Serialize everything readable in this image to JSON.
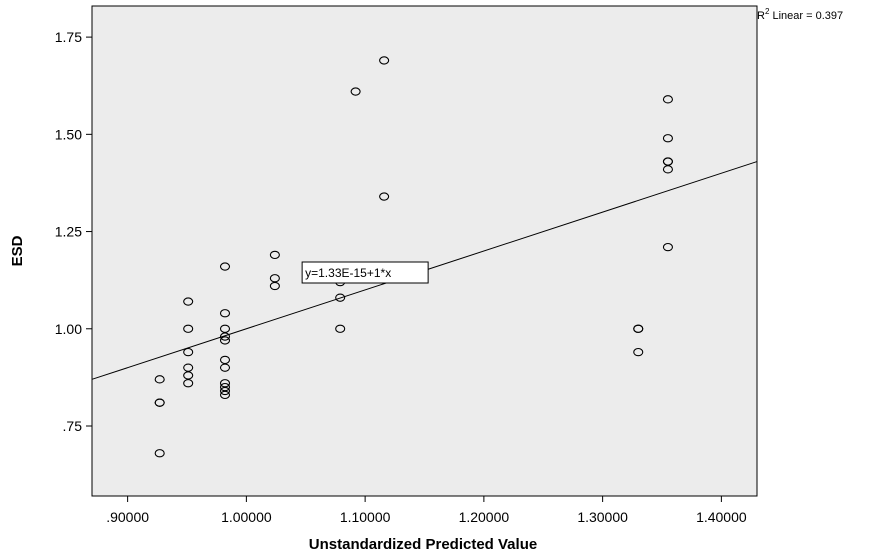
{
  "chart_data": {
    "type": "scatter",
    "title": "",
    "xlabel": "Unstandardized Predicted Value",
    "ylabel": "ESD",
    "xlim": [
      0.87,
      1.43
    ],
    "ylim": [
      0.57,
      1.83
    ],
    "x_ticks": [
      {
        "value": 0.9,
        "label": ".90000"
      },
      {
        "value": 1.0,
        "label": "1.00000"
      },
      {
        "value": 1.1,
        "label": "1.10000"
      },
      {
        "value": 1.2,
        "label": "1.20000"
      },
      {
        "value": 1.3,
        "label": "1.30000"
      },
      {
        "value": 1.4,
        "label": "1.40000"
      }
    ],
    "y_ticks": [
      {
        "value": 0.75,
        "label": ".75"
      },
      {
        "value": 1.0,
        "label": "1.00"
      },
      {
        "value": 1.25,
        "label": "1.25"
      },
      {
        "value": 1.5,
        "label": "1.50"
      },
      {
        "value": 1.75,
        "label": "1.75"
      }
    ],
    "grid": false,
    "plot_background": "#ececec",
    "point_color": "#000000",
    "line_color": "#000000",
    "points": [
      {
        "x": 0.927,
        "y": 0.87
      },
      {
        "x": 0.927,
        "y": 0.81
      },
      {
        "x": 0.927,
        "y": 0.81
      },
      {
        "x": 0.927,
        "y": 0.68
      },
      {
        "x": 0.951,
        "y": 1.07
      },
      {
        "x": 0.951,
        "y": 1.0
      },
      {
        "x": 0.951,
        "y": 0.94
      },
      {
        "x": 0.951,
        "y": 0.9
      },
      {
        "x": 0.951,
        "y": 0.88
      },
      {
        "x": 0.951,
        "y": 0.86
      },
      {
        "x": 0.982,
        "y": 1.16
      },
      {
        "x": 0.982,
        "y": 1.04
      },
      {
        "x": 0.982,
        "y": 1.0
      },
      {
        "x": 0.982,
        "y": 0.98
      },
      {
        "x": 0.982,
        "y": 0.97
      },
      {
        "x": 0.982,
        "y": 0.92
      },
      {
        "x": 0.982,
        "y": 0.9
      },
      {
        "x": 0.982,
        "y": 0.86
      },
      {
        "x": 0.982,
        "y": 0.85
      },
      {
        "x": 0.982,
        "y": 0.84
      },
      {
        "x": 0.982,
        "y": 0.83
      },
      {
        "x": 1.024,
        "y": 1.19
      },
      {
        "x": 1.024,
        "y": 1.13
      },
      {
        "x": 1.024,
        "y": 1.11
      },
      {
        "x": 1.079,
        "y": 1.12
      },
      {
        "x": 1.079,
        "y": 1.08
      },
      {
        "x": 1.079,
        "y": 1.0
      },
      {
        "x": 1.092,
        "y": 1.61
      },
      {
        "x": 1.116,
        "y": 1.69
      },
      {
        "x": 1.116,
        "y": 1.34
      },
      {
        "x": 1.33,
        "y": 1.0
      },
      {
        "x": 1.33,
        "y": 1.0
      },
      {
        "x": 1.33,
        "y": 0.94
      },
      {
        "x": 1.355,
        "y": 1.59
      },
      {
        "x": 1.355,
        "y": 1.49
      },
      {
        "x": 1.355,
        "y": 1.43
      },
      {
        "x": 1.355,
        "y": 1.43
      },
      {
        "x": 1.355,
        "y": 1.41
      },
      {
        "x": 1.355,
        "y": 1.21
      }
    ],
    "fit_line": {
      "equation_label": "y=1.33E-15+1*x",
      "intercept": 0,
      "slope": 1,
      "r2_prefix": "R",
      "r2_sup": "2",
      "r2_text": " Linear = 0.397",
      "label_anchor": {
        "x": 1.1,
        "y": 1.11
      }
    }
  }
}
